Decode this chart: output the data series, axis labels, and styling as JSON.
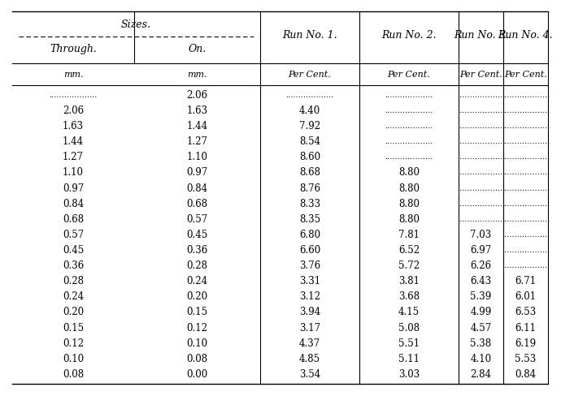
{
  "sizes_header": "Sizes.",
  "col_headers_left": [
    "Through.",
    "On."
  ],
  "run_headers": [
    "Run No. 1.",
    "Run No. 2.",
    "Run No. 3.",
    "Run No. 4."
  ],
  "sub_headers": [
    "mm.",
    "mm.",
    "Per Cent.",
    "Per Cent.",
    "Per Cent.",
    "Per Cent."
  ],
  "rows": [
    [
      ".................",
      "2.06",
      ".................",
      ".................",
      ".................",
      "................."
    ],
    [
      "2.06",
      "1.63",
      "4.40",
      ".................",
      ".................",
      "................."
    ],
    [
      "1.63",
      "1.44",
      "7.92",
      ".................",
      ".................",
      "................."
    ],
    [
      "1.44",
      "1.27",
      "8.54",
      ".................",
      ".................",
      "................."
    ],
    [
      "1.27",
      "1.10",
      "8.60",
      ".................",
      ".................",
      "................."
    ],
    [
      "1.10",
      "0.97",
      "8.68",
      "8.80",
      ".................",
      "................."
    ],
    [
      "0.97",
      "0.84",
      "8.76",
      "8.80",
      ".................",
      "................."
    ],
    [
      "0.84",
      "0.68",
      "8.33",
      "8.80",
      ".................",
      "................."
    ],
    [
      "0.68",
      "0.57",
      "8.35",
      "8.80",
      ".................",
      "................."
    ],
    [
      "0.57",
      "0.45",
      "6.80",
      "7.81",
      "7.03",
      "................."
    ],
    [
      "0.45",
      "0.36",
      "6.60",
      "6.52",
      "6.97",
      "................."
    ],
    [
      "0.36",
      "0.28",
      "3.76",
      "5.72",
      "6.26",
      "................."
    ],
    [
      "0.28",
      "0.24",
      "3.31",
      "3.81",
      "6.43",
      "6.71"
    ],
    [
      "0.24",
      "0.20",
      "3.12",
      "3.68",
      "5.39",
      "6.01"
    ],
    [
      "0.20",
      "0.15",
      "3.94",
      "4.15",
      "4.99",
      "6.53"
    ],
    [
      "0.15",
      "0.12",
      "3.17",
      "5.08",
      "4.57",
      "6.11"
    ],
    [
      "0.12",
      "0.10",
      "4.37",
      "5.51",
      "5.38",
      "6.19"
    ],
    [
      "0.10",
      "0.08",
      "4.85",
      "5.11",
      "4.10",
      "5.53"
    ],
    [
      "0.08",
      "0.00",
      "3.54",
      "3.03",
      "2.84",
      "0.84"
    ]
  ],
  "bg_color": "#ffffff",
  "text_color": "#000000"
}
